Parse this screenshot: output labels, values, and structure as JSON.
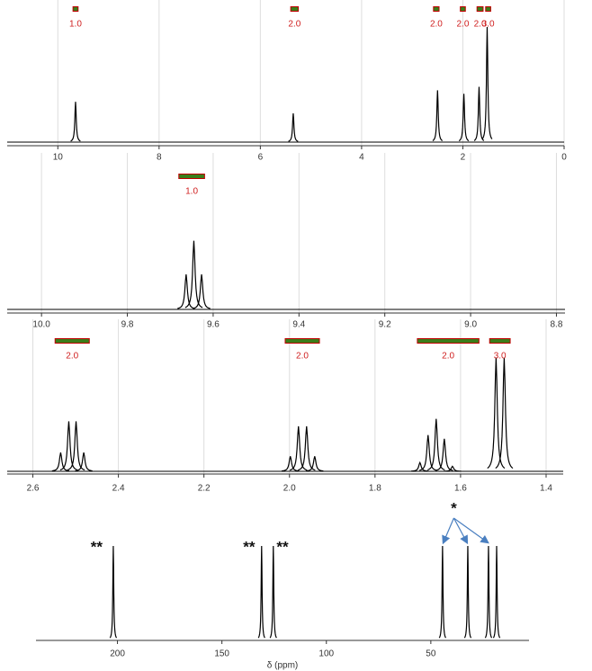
{
  "chart_data": [
    {
      "type": "spectrum",
      "xlim": [
        11,
        0
      ],
      "ylim": [
        0,
        100
      ],
      "xticks": [
        10,
        8,
        6,
        4,
        2,
        0
      ],
      "grid": true,
      "color": "#000000",
      "x": [
        9.65,
        5.35,
        2.5,
        1.98,
        1.68,
        1.52
      ],
      "values": [
        35,
        25,
        45,
        42,
        48,
        100
      ],
      "integrals": [
        {
          "from": 9.7,
          "to": 9.6,
          "label": "1.0"
        },
        {
          "from": 5.4,
          "to": 5.25,
          "label": "2.0"
        },
        {
          "from": 2.58,
          "to": 2.47,
          "label": "2.0"
        },
        {
          "from": 2.05,
          "to": 1.95,
          "label": "2.0"
        },
        {
          "from": 1.72,
          "to": 1.6,
          "label": "2.0"
        },
        {
          "from": 1.55,
          "to": 1.45,
          "label": "3.0"
        }
      ]
    },
    {
      "type": "spectrum",
      "xlim": [
        10.08,
        8.78
      ],
      "ylim": [
        0,
        100
      ],
      "xticks": [
        {
          "value": 10,
          "label": "10.0"
        },
        9.8,
        9.6,
        9.4,
        9.2,
        {
          "value": 9,
          "label": "9.0"
        },
        8.8
      ],
      "grid": true,
      "color": "#000000",
      "x": [
        9.663,
        9.645,
        9.627
      ],
      "values": [
        27,
        53,
        27
      ],
      "integrals": [
        {
          "from": 9.68,
          "to": 9.62,
          "label": "1.0"
        }
      ]
    },
    {
      "type": "spectrum",
      "xlim": [
        2.66,
        1.36
      ],
      "ylim": [
        0,
        100
      ],
      "xticks": [
        2.6,
        2.4,
        2.2,
        {
          "value": 2,
          "label": "2.0"
        },
        1.8,
        1.6,
        1.4
      ],
      "grid": true,
      "color": "#000000",
      "x": [
        2.535,
        2.516,
        2.499,
        2.481,
        1.998,
        1.979,
        1.96,
        1.941,
        1.695,
        1.676,
        1.657,
        1.638,
        1.619,
        1.517,
        1.498
      ],
      "values": [
        15,
        40,
        40,
        15,
        12,
        36,
        36,
        12,
        7,
        29,
        42,
        26,
        4,
        91,
        91
      ],
      "integrals": [
        {
          "from": 2.548,
          "to": 2.468,
          "label": "2.0"
        },
        {
          "from": 2.01,
          "to": 1.93,
          "label": "2.0"
        },
        {
          "from": 1.701,
          "to": 1.557,
          "label": "2.0"
        },
        {
          "from": 1.532,
          "to": 1.484,
          "label": "3.0"
        }
      ]
    },
    {
      "type": "spectrum",
      "xlim": [
        239,
        3
      ],
      "ylim": [
        0,
        100
      ],
      "xticks": [
        200,
        150,
        100,
        50
      ],
      "grid": false,
      "color": "#000000",
      "x_label": "δ (ppm)",
      "x": [
        202,
        131,
        125.4,
        44.4,
        32.3,
        22.4,
        18.5
      ],
      "values": [
        100,
        100,
        100,
        100,
        100,
        100,
        100
      ],
      "annotations": [
        {
          "text": "**",
          "x": 210
        },
        {
          "text": "**",
          "x": 137
        },
        {
          "text": "**",
          "x": 121
        },
        {
          "text": "*",
          "x": 39
        }
      ]
    }
  ]
}
